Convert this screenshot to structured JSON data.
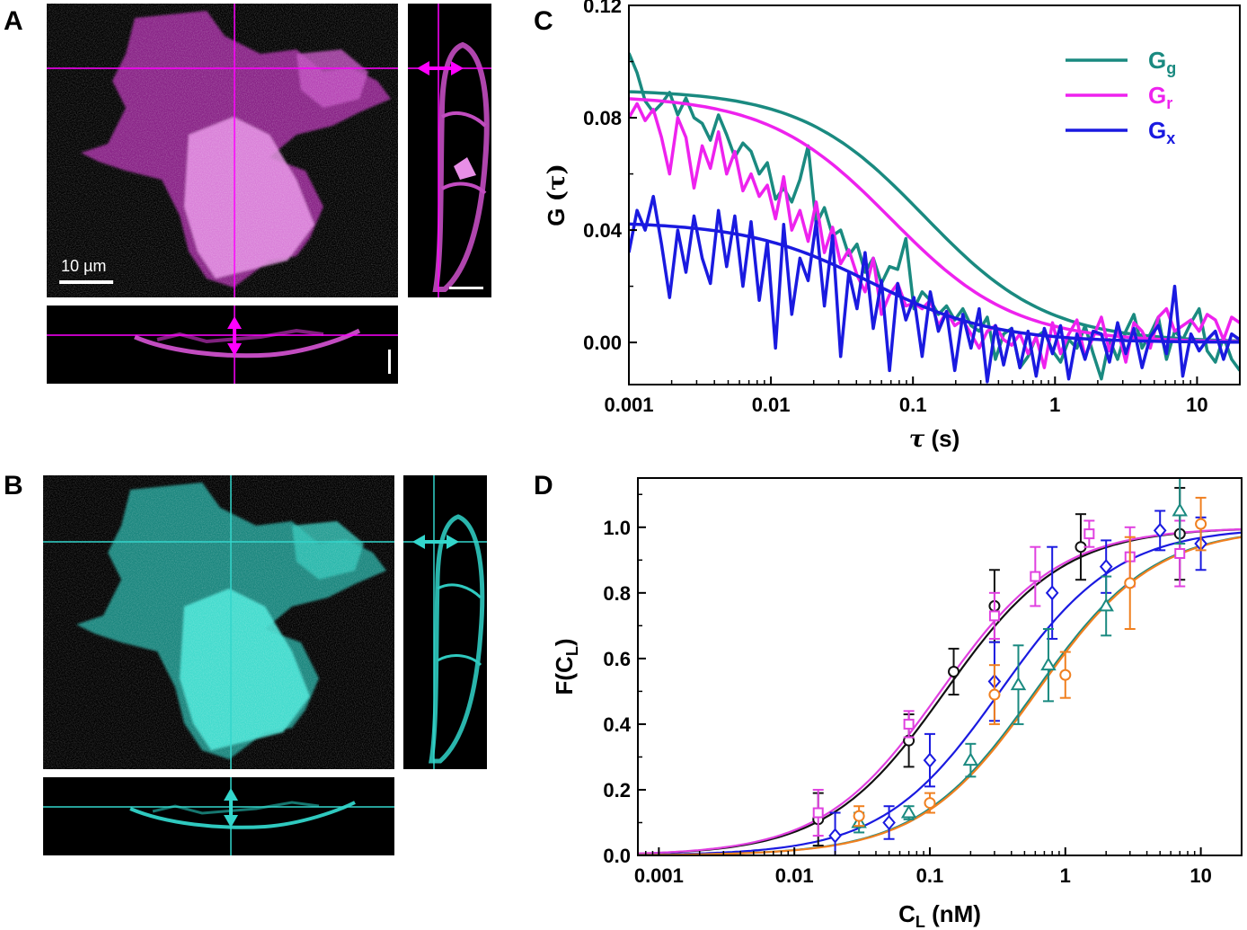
{
  "panels": {
    "A": {
      "label": "A",
      "scale_bar_label": "10 µm",
      "color": "#e23be0"
    },
    "B": {
      "label": "B",
      "color": "#33d6cc"
    },
    "C": {
      "label": "C"
    },
    "D": {
      "label": "D"
    }
  },
  "chart_data": [
    {
      "panel": "C",
      "type": "line",
      "xlabel_main": "τ",
      "xlabel_unit": "(s)",
      "ylabel_main": "G",
      "ylabel_arg": "(τ)",
      "x_scale": "log",
      "xlim": [
        0.001,
        20
      ],
      "ylim": [
        -0.015,
        0.12
      ],
      "x_ticks": [
        0.001,
        0.01,
        0.1,
        1,
        10
      ],
      "x_tick_labels": [
        "0.001",
        "0.01",
        "0.1",
        "1",
        "10"
      ],
      "y_ticks": [
        0.0,
        0.04,
        0.08,
        0.12
      ],
      "y_tick_labels": [
        "0.00",
        "0.04",
        "0.08",
        "0.12"
      ],
      "legend_position": "top-right",
      "series": [
        {
          "name": "G",
          "sub": "g",
          "color": "#1a8a80",
          "data_y": [
            0.103,
            0.096,
            0.086,
            0.082,
            0.085,
            0.089,
            0.081,
            0.087,
            0.08,
            0.078,
            0.072,
            0.081,
            0.074,
            0.066,
            0.071,
            0.068,
            0.06,
            0.064,
            0.051,
            0.055,
            0.05,
            0.058,
            0.07,
            0.042,
            0.048,
            0.038,
            0.04,
            0.031,
            0.035,
            0.025,
            0.03,
            0.021,
            0.027,
            0.026,
            0.037,
            0.012,
            0.018,
            0.015,
            0.01,
            0.013,
            0.008,
            0.012,
            0.006,
            0.004,
            0.009,
            -0.006,
            0.003,
            0.005,
            -0.009,
            -0.005,
            0.002,
            0.004,
            -0.003,
            -0.007,
            0.001,
            -0.002,
            0.006,
            -0.004,
            -0.013,
            0.001,
            -0.006,
            0.004,
            0.01,
            -0.002,
            0.003,
            0.009,
            -0.006,
            0.004,
            0.001,
            0.007,
            0.012,
            -0.003,
            -0.007,
            0.002,
            -0.006,
            -0.01
          ],
          "fit": {
            "amp": 0.09,
            "tau": 0.12
          }
        },
        {
          "name": "G",
          "sub": "r",
          "color": "#ee22ee",
          "data_y": [
            0.08,
            0.085,
            0.079,
            0.083,
            0.073,
            0.06,
            0.08,
            0.073,
            0.055,
            0.07,
            0.062,
            0.075,
            0.06,
            0.068,
            0.054,
            0.06,
            0.052,
            0.056,
            0.044,
            0.059,
            0.04,
            0.047,
            0.036,
            0.05,
            0.032,
            0.041,
            0.028,
            0.033,
            0.024,
            0.018,
            0.03,
            0.01,
            0.017,
            0.021,
            0.013,
            0.014,
            0.012,
            0.015,
            0.006,
            0.011,
            0.006,
            0.008,
            0.003,
            -0.002,
            0.004,
            0.006,
            0.001,
            -0.001,
            0.003,
            -0.004,
            0.002,
            -0.009,
            0.007,
            -0.004,
            0.003,
            0.008,
            -0.005,
            0.002,
            0.009,
            -0.003,
            0.005,
            -0.007,
            0.007,
            0.004,
            -0.002,
            0.009,
            0.012,
            0.004,
            0.006,
            0.008,
            0.004,
            0.01,
            0.008,
            0.001,
            0.009,
            0.007
          ],
          "fit": {
            "amp": 0.088,
            "tau": 0.07
          }
        },
        {
          "name": "G",
          "sub": "x",
          "color": "#1a1ae0",
          "data_y": [
            0.032,
            0.047,
            0.04,
            0.052,
            0.035,
            0.016,
            0.04,
            0.025,
            0.045,
            0.03,
            0.021,
            0.047,
            0.027,
            0.045,
            0.02,
            0.043,
            0.015,
            0.036,
            -0.002,
            0.042,
            0.01,
            0.03,
            0.022,
            0.043,
            0.013,
            0.038,
            -0.005,
            0.025,
            0.012,
            0.032,
            0.005,
            0.022,
            -0.01,
            0.021,
            0.008,
            0.016,
            -0.005,
            0.018,
            0.004,
            0.011,
            -0.01,
            0.01,
            -0.002,
            0.012,
            -0.014,
            0.006,
            -0.008,
            0.005,
            -0.009,
            0.004,
            -0.012,
            0.005,
            -0.004,
            0.006,
            -0.013,
            0.003,
            -0.006,
            0.004,
            0.003,
            -0.007,
            0.007,
            -0.004,
            0.005,
            -0.009,
            0.002,
            0.006,
            -0.004,
            0.02,
            -0.012,
            0.003,
            -0.003,
            0.001,
            0.004,
            -0.006,
            0.003,
            0.001
          ],
          "fit": {
            "amp": 0.043,
            "tau": 0.05
          }
        }
      ]
    },
    {
      "panel": "D",
      "type": "scatter",
      "xlabel_main": "C",
      "xlabel_sub": "L",
      "xlabel_unit": " (nM)",
      "ylabel_main": "F(C",
      "ylabel_sub": "L",
      "ylabel_end": ")",
      "x_scale": "log",
      "xlim": [
        0.0007,
        20
      ],
      "ylim": [
        0.0,
        1.15
      ],
      "x_ticks": [
        0.001,
        0.01,
        0.1,
        1,
        10
      ],
      "x_tick_labels": [
        "0.001",
        "0.01",
        "0.1",
        "1",
        "10"
      ],
      "y_ticks": [
        0.0,
        0.2,
        0.4,
        0.6,
        0.8,
        1.0
      ],
      "y_tick_labels": [
        "0.0",
        "0.2",
        "0.4",
        "0.6",
        "0.8",
        "1.0"
      ],
      "series": [
        {
          "marker": "circle",
          "color": "#111111",
          "fit_kd": 0.13,
          "points": [
            [
              0.015,
              0.11,
              0.08
            ],
            [
              0.07,
              0.35,
              0.08
            ],
            [
              0.15,
              0.56,
              0.07
            ],
            [
              0.3,
              0.76,
              0.11
            ],
            [
              1.3,
              0.94,
              0.1
            ],
            [
              7.0,
              0.98,
              0.14
            ]
          ]
        },
        {
          "marker": "square",
          "color": "#e040e0",
          "fit_kd": 0.12,
          "points": [
            [
              0.015,
              0.13,
              0.07
            ],
            [
              0.07,
              0.4,
              0.04
            ],
            [
              0.3,
              0.73,
              0.07
            ],
            [
              0.6,
              0.85,
              0.09
            ],
            [
              1.5,
              0.98,
              0.04
            ],
            [
              3.0,
              0.91,
              0.09
            ],
            [
              7.0,
              0.92,
              0.1
            ]
          ]
        },
        {
          "marker": "diamond",
          "color": "#1a1ae0",
          "fit_kd": 0.33,
          "points": [
            [
              0.02,
              0.06,
              0.07
            ],
            [
              0.05,
              0.1,
              0.05
            ],
            [
              0.1,
              0.29,
              0.08
            ],
            [
              0.3,
              0.53,
              0.12
            ],
            [
              0.8,
              0.8,
              0.14
            ],
            [
              2.0,
              0.88,
              0.08
            ],
            [
              5.0,
              0.99,
              0.06
            ],
            [
              10.0,
              0.95,
              0.08
            ]
          ]
        },
        {
          "marker": "triangle",
          "color": "#1a8a80",
          "fit_kd": 0.6,
          "points": [
            [
              0.03,
              0.1,
              0.03
            ],
            [
              0.07,
              0.13,
              0.02
            ],
            [
              0.2,
              0.29,
              0.05
            ],
            [
              0.45,
              0.52,
              0.12
            ],
            [
              0.75,
              0.58,
              0.11
            ],
            [
              2.0,
              0.76,
              0.09
            ],
            [
              7.0,
              1.05,
              0.1
            ]
          ]
        },
        {
          "marker": "circle",
          "color": "#f08020",
          "fit_kd": 0.62,
          "points": [
            [
              0.03,
              0.12,
              0.03
            ],
            [
              0.1,
              0.16,
              0.03
            ],
            [
              0.3,
              0.49,
              0.09
            ],
            [
              1.0,
              0.55,
              0.07
            ],
            [
              3.0,
              0.83,
              0.14
            ],
            [
              10.0,
              1.01,
              0.08
            ]
          ]
        }
      ]
    }
  ]
}
